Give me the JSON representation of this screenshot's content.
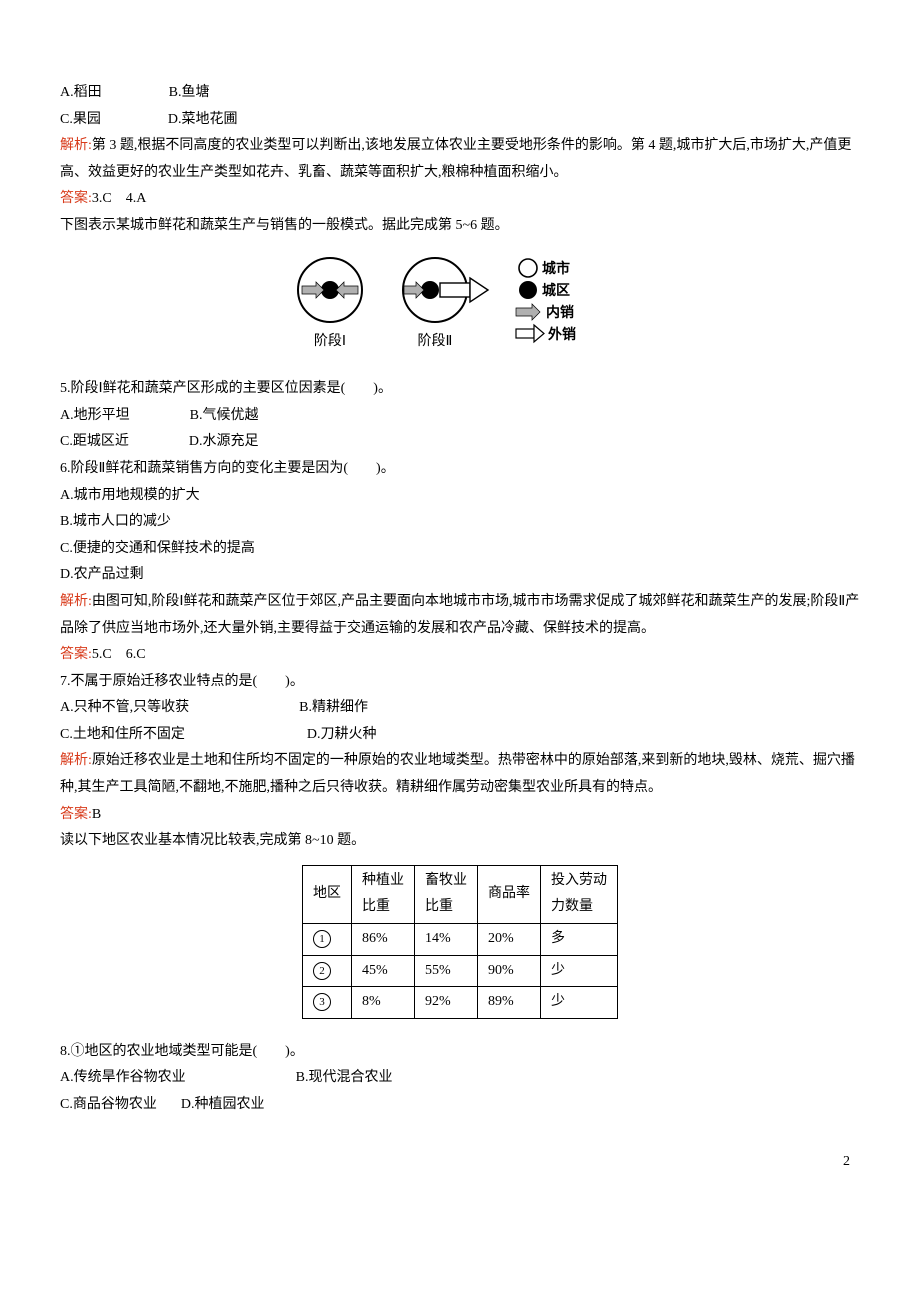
{
  "q34": {
    "optA": "A.稻田",
    "optB": "B.鱼塘",
    "optC": "C.果园",
    "optD": "D.菜地花圃",
    "jiexi_label": "解析:",
    "jiexi_text": "第 3 题,根据不同高度的农业类型可以判断出,该地发展立体农业主要受地形条件的影响。第 4 题,城市扩大后,市场扩大,产值更高、效益更好的农业生产类型如花卉、乳畜、蔬菜等面积扩大,粮棉种植面积缩小。",
    "daan_label": "答案:",
    "daan_text": "3.C　4.A"
  },
  "q56": {
    "intro": "下图表示某城市鲜花和蔬菜生产与销售的一般模式。据此完成第 5~6 题。",
    "diagram": {
      "stage1_label": "阶段Ⅰ",
      "stage2_label": "阶段Ⅱ",
      "legend_city": "城市",
      "legend_urban": "城区",
      "legend_inner": "内销",
      "legend_outer": "外销",
      "colors": {
        "stroke": "#000000",
        "fill_black": "#000000",
        "fill_gray": "#b0b0b0",
        "fill_white": "#ffffff",
        "bg": "#ffffff"
      }
    },
    "q5_stem": "5.阶段Ⅰ鲜花和蔬菜产区形成的主要区位因素是(　　)。",
    "q5_A": "A.地形平坦",
    "q5_B": "B.气候优越",
    "q5_C": "C.距城区近",
    "q5_D": "D.水源充足",
    "q6_stem": "6.阶段Ⅱ鲜花和蔬菜销售方向的变化主要是因为(　　)。",
    "q6_A": "A.城市用地规模的扩大",
    "q6_B": "B.城市人口的减少",
    "q6_C": "C.便捷的交通和保鲜技术的提高",
    "q6_D": "D.农产品过剩",
    "jiexi_label": "解析:",
    "jiexi_text": "由图可知,阶段Ⅰ鲜花和蔬菜产区位于郊区,产品主要面向本地城市市场,城市市场需求促成了城郊鲜花和蔬菜生产的发展;阶段Ⅱ产品除了供应当地市场外,还大量外销,主要得益于交通运输的发展和农产品冷藏、保鲜技术的提高。",
    "daan_label": "答案:",
    "daan_text": "5.C　6.C"
  },
  "q7": {
    "stem": "7.不属于原始迁移农业特点的是(　　)。",
    "A": "A.只种不管,只等收获",
    "B": "B.精耕细作",
    "C": "C.土地和住所不固定",
    "D": "D.刀耕火种",
    "jiexi_label": "解析:",
    "jiexi_text": "原始迁移农业是土地和住所均不固定的一种原始的农业地域类型。热带密林中的原始部落,来到新的地块,毁林、烧荒、掘穴播种,其生产工具简陋,不翻地,不施肥,播种之后只待收获。精耕细作属劳动密集型农业所具有的特点。",
    "daan_label": "答案:",
    "daan_text": "B"
  },
  "q810": {
    "intro": "读以下地区农业基本情况比较表,完成第 8~10 题。",
    "table": {
      "columns": [
        "地区",
        "种植业比重",
        "畜牧业比重",
        "商品率",
        "投入劳动力数量"
      ],
      "rows": [
        [
          "①",
          "86%",
          "14%",
          "20%",
          "多"
        ],
        [
          "②",
          "45%",
          "55%",
          "90%",
          "少"
        ],
        [
          "③",
          "8%",
          "92%",
          "89%",
          "少"
        ]
      ]
    },
    "q8_stem": "8.①地区的农业地域类型可能是(　　)。",
    "q8_A": "A.传统旱作谷物农业",
    "q8_B": "B.现代混合农业",
    "q8_C": "C.商品谷物农业",
    "q8_D": "D.种植园农业"
  },
  "page_number": "2"
}
